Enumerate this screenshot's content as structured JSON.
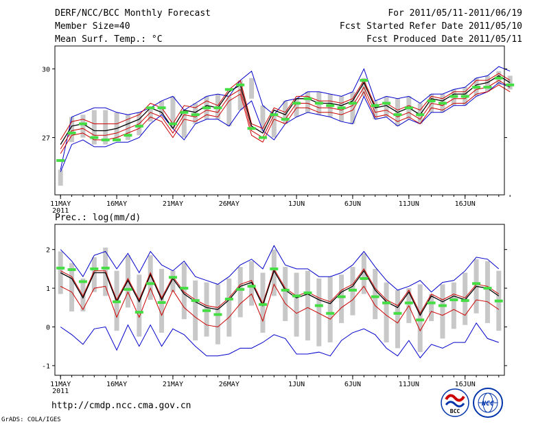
{
  "header": {
    "left": [
      "DERF/NCC/BCC Monthly Forecast",
      "Member Size=40",
      "Mean Surf. Temp.: °C"
    ],
    "right": [
      "For 2011/05/11-2011/06/19",
      "Fcst Started Refer Date 2011/05/10",
      "Fcst Produced Date 2011/05/11"
    ]
  },
  "footer": {
    "url": "http://cmdp.ncc.cma.gov.cn",
    "credit": "GrADS: COLA/IGES",
    "logo_bcc": "BCC",
    "logo_ncc": "NCC"
  },
  "colors": {
    "envelope": "#0000cc",
    "mean_lower": "#cc0000",
    "ensemble_mean": "#000000",
    "upper_band": "#cc0000",
    "box": "#c8c8c8",
    "median": "#44dd44"
  },
  "chart_data": [
    {
      "type": "line",
      "title": "Mean Surf. Temp.: °C",
      "xlabel": "",
      "ylabel": "°C",
      "xlim": [
        0.5,
        40.5
      ],
      "ylim": [
        24.5,
        31.0
      ],
      "yticks": [
        27,
        30
      ],
      "year_label": "2011",
      "xticks": [
        {
          "day": 1,
          "label": "11MAY"
        },
        {
          "day": 6,
          "label": "16MAY"
        },
        {
          "day": 11,
          "label": "21MAY"
        },
        {
          "day": 16,
          "label": "26MAY"
        },
        {
          "day": 22,
          "label": "1JUN"
        },
        {
          "day": 27,
          "label": "6JUN"
        },
        {
          "day": 32,
          "label": "11JUN"
        },
        {
          "day": 37,
          "label": "16JUN"
        }
      ],
      "series": [
        {
          "name": "max",
          "values": [
            25.6,
            27.9,
            28.1,
            28.3,
            28.3,
            28.1,
            28.0,
            28.1,
            28.3,
            28.6,
            28.8,
            28.2,
            28.5,
            28.8,
            28.9,
            28.8,
            29.5,
            29.9,
            28.4,
            28.0,
            28.6,
            28.7,
            29.0,
            29.0,
            28.9,
            28.8,
            29.0,
            30.0,
            28.6,
            28.8,
            28.7,
            28.8,
            28.5,
            28.9,
            28.9,
            29.1,
            29.2,
            29.6,
            29.7,
            30.1,
            29.9
          ]
        },
        {
          "name": "min",
          "values": [
            25.5,
            26.7,
            26.9,
            26.6,
            26.6,
            26.8,
            26.8,
            27.0,
            27.6,
            28.0,
            27.4,
            26.9,
            27.6,
            27.8,
            27.8,
            27.5,
            28.2,
            28.6,
            27.3,
            26.9,
            27.6,
            27.9,
            28.1,
            28.0,
            27.9,
            27.7,
            27.6,
            28.8,
            27.8,
            27.9,
            27.5,
            27.8,
            27.6,
            28.1,
            28.1,
            28.4,
            28.4,
            28.8,
            29.0,
            29.4,
            29.2
          ]
        },
        {
          "name": "upper",
          "values": [
            26.9,
            27.7,
            27.8,
            27.6,
            27.6,
            27.6,
            27.8,
            28.0,
            28.5,
            28.3,
            27.6,
            28.4,
            28.3,
            28.6,
            28.4,
            29.1,
            29.5,
            27.6,
            27.4,
            28.3,
            28.1,
            28.8,
            28.8,
            28.6,
            28.6,
            28.5,
            28.7,
            29.5,
            28.4,
            28.5,
            28.2,
            28.4,
            28.2,
            28.8,
            28.7,
            29.0,
            29.0,
            29.5,
            29.5,
            29.8,
            29.5
          ]
        },
        {
          "name": "mean",
          "values": [
            26.7,
            27.5,
            27.6,
            27.3,
            27.3,
            27.4,
            27.6,
            27.8,
            28.3,
            28.1,
            27.4,
            28.2,
            28.1,
            28.4,
            28.3,
            29.0,
            29.3,
            27.5,
            27.2,
            28.2,
            28.0,
            28.7,
            28.7,
            28.5,
            28.5,
            28.4,
            28.6,
            29.4,
            28.3,
            28.4,
            28.1,
            28.3,
            28.0,
            28.7,
            28.6,
            28.9,
            28.9,
            29.3,
            29.4,
            29.7,
            29.4
          ]
        },
        {
          "name": "lower",
          "values": [
            26.5,
            27.3,
            27.4,
            27.1,
            27.1,
            27.2,
            27.4,
            27.6,
            28.1,
            27.9,
            27.2,
            28.0,
            27.9,
            28.2,
            28.1,
            28.8,
            29.1,
            27.3,
            27.0,
            28.0,
            27.8,
            28.5,
            28.5,
            28.3,
            28.3,
            28.2,
            28.4,
            29.2,
            28.1,
            28.2,
            27.9,
            28.1,
            27.8,
            28.5,
            28.4,
            28.7,
            28.7,
            29.1,
            29.2,
            29.5,
            29.2
          ]
        },
        {
          "name": "bottom",
          "values": [
            26.3,
            27.1,
            27.2,
            26.9,
            26.9,
            27.0,
            27.2,
            27.4,
            27.9,
            27.7,
            27.0,
            27.8,
            27.7,
            28.0,
            27.9,
            28.6,
            28.9,
            27.1,
            26.8,
            27.8,
            27.6,
            28.3,
            28.3,
            28.1,
            28.1,
            28.0,
            28.2,
            29.0,
            27.9,
            28.0,
            27.7,
            27.9,
            27.6,
            28.3,
            28.2,
            28.5,
            28.5,
            28.9,
            29.0,
            29.3,
            29.0
          ]
        },
        {
          "name": "box_high",
          "values": [
            25.6,
            27.9,
            28.0,
            28.2,
            28.2,
            28.1,
            28.0,
            28.1,
            28.3,
            28.6,
            28.8,
            28.2,
            28.5,
            28.8,
            28.9,
            28.8,
            29.5,
            29.6,
            28.4,
            28.0,
            28.6,
            28.7,
            29.0,
            29.0,
            28.9,
            28.8,
            29.0,
            29.6,
            28.6,
            28.8,
            28.7,
            28.8,
            28.5,
            28.9,
            28.9,
            29.1,
            29.2,
            29.6,
            29.7,
            29.9,
            29.7
          ]
        },
        {
          "name": "box_low",
          "values": [
            24.9,
            26.8,
            27.0,
            26.7,
            26.7,
            26.9,
            26.9,
            27.1,
            27.7,
            28.0,
            27.4,
            27.0,
            27.6,
            27.8,
            27.8,
            27.5,
            28.2,
            28.7,
            27.3,
            27.0,
            27.6,
            27.9,
            28.1,
            28.0,
            27.9,
            27.7,
            27.6,
            28.8,
            27.8,
            27.9,
            27.5,
            27.8,
            27.6,
            28.1,
            28.1,
            28.4,
            28.4,
            28.8,
            29.0,
            29.3,
            29.1
          ]
        },
        {
          "name": "median",
          "values": [
            26.0,
            27.2,
            27.6,
            27.0,
            26.9,
            26.9,
            27.1,
            27.5,
            28.3,
            28.3,
            27.6,
            28.1,
            28.0,
            28.3,
            28.3,
            29.1,
            29.3,
            27.4,
            27.0,
            28.0,
            27.8,
            28.5,
            28.7,
            28.5,
            28.4,
            28.3,
            28.5,
            29.5,
            28.4,
            28.5,
            28.0,
            28.3,
            28.0,
            28.6,
            28.5,
            28.8,
            28.8,
            29.2,
            29.2,
            29.6,
            29.3
          ]
        }
      ]
    },
    {
      "type": "line",
      "title": "Prec.: log(mm/d)",
      "xlabel": "",
      "ylabel": "log(mm/d)",
      "xlim": [
        0.5,
        40.5
      ],
      "ylim": [
        -1.25,
        2.65
      ],
      "yticks": [
        -1,
        0,
        1,
        2
      ],
      "year_label": "2011",
      "xticks": [
        {
          "day": 1,
          "label": "11MAY"
        },
        {
          "day": 6,
          "label": "16MAY"
        },
        {
          "day": 11,
          "label": "21MAY"
        },
        {
          "day": 16,
          "label": "26MAY"
        },
        {
          "day": 22,
          "label": "1JUN"
        },
        {
          "day": 27,
          "label": "6JUN"
        },
        {
          "day": 32,
          "label": "11JUN"
        },
        {
          "day": 37,
          "label": "16JUN"
        }
      ],
      "series": [
        {
          "name": "max",
          "values": [
            2.0,
            1.7,
            1.3,
            1.85,
            1.95,
            1.5,
            1.9,
            1.4,
            1.95,
            1.6,
            1.45,
            1.7,
            1.3,
            1.2,
            1.1,
            1.3,
            1.6,
            1.75,
            1.5,
            2.1,
            1.6,
            1.5,
            1.5,
            1.3,
            1.3,
            1.4,
            1.6,
            1.95,
            1.55,
            1.2,
            0.95,
            1.05,
            1.2,
            0.9,
            1.15,
            1.2,
            1.45,
            1.8,
            1.75,
            1.5
          ]
        },
        {
          "name": "min",
          "values": [
            0.0,
            -0.2,
            -0.45,
            -0.05,
            0.0,
            -0.6,
            0.05,
            -0.5,
            0.05,
            -0.5,
            -0.05,
            -0.2,
            -0.5,
            -0.75,
            -0.75,
            -0.7,
            -0.55,
            -0.55,
            -0.4,
            -0.2,
            -0.3,
            -0.7,
            -0.7,
            -0.65,
            -0.75,
            -0.35,
            -0.15,
            -0.05,
            -0.2,
            -0.55,
            -0.75,
            -0.35,
            -0.8,
            -0.45,
            -0.55,
            -0.4,
            -0.4,
            0.1,
            -0.3,
            -0.4
          ]
        },
        {
          "name": "upper",
          "values": [
            1.45,
            1.3,
            0.8,
            1.45,
            1.45,
            0.7,
            1.25,
            0.7,
            1.4,
            0.75,
            1.3,
            0.9,
            0.7,
            0.55,
            0.5,
            0.75,
            1.1,
            1.2,
            0.6,
            1.5,
            1.0,
            0.8,
            0.9,
            0.75,
            0.65,
            0.95,
            1.1,
            1.5,
            1.0,
            0.7,
            0.55,
            0.95,
            0.35,
            0.85,
            0.7,
            0.85,
            0.75,
            1.1,
            1.05,
            0.85
          ]
        },
        {
          "name": "mean",
          "values": [
            1.4,
            1.25,
            0.75,
            1.4,
            1.4,
            0.65,
            1.2,
            0.65,
            1.35,
            0.7,
            1.25,
            0.85,
            0.65,
            0.5,
            0.45,
            0.7,
            1.05,
            1.15,
            0.55,
            1.45,
            0.95,
            0.75,
            0.85,
            0.7,
            0.6,
            0.9,
            1.05,
            1.45,
            0.95,
            0.65,
            0.5,
            0.9,
            0.3,
            0.8,
            0.65,
            0.8,
            0.7,
            1.05,
            1.0,
            0.8
          ]
        },
        {
          "name": "lower",
          "values": [
            1.05,
            0.9,
            0.45,
            1.0,
            1.05,
            0.25,
            0.9,
            0.25,
            1.0,
            0.3,
            0.95,
            0.5,
            0.25,
            0.05,
            0.0,
            0.25,
            0.6,
            0.85,
            0.15,
            1.1,
            0.6,
            0.35,
            0.5,
            0.35,
            0.2,
            0.5,
            0.7,
            1.05,
            0.55,
            0.3,
            0.1,
            0.55,
            -0.1,
            0.4,
            0.3,
            0.45,
            0.3,
            0.7,
            0.65,
            0.45
          ]
        },
        {
          "name": "box_high",
          "values": [
            1.95,
            1.65,
            1.25,
            1.8,
            2.05,
            1.45,
            1.85,
            1.35,
            1.85,
            1.5,
            1.45,
            1.65,
            1.2,
            1.15,
            1.1,
            1.25,
            1.55,
            1.7,
            1.4,
            2.0,
            1.55,
            1.4,
            1.45,
            1.25,
            1.3,
            1.35,
            1.55,
            1.9,
            1.5,
            1.15,
            0.95,
            1.0,
            1.1,
            0.85,
            1.1,
            1.15,
            1.4,
            1.75,
            1.7,
            1.45
          ]
        },
        {
          "name": "box_low",
          "values": [
            0.85,
            0.4,
            0.4,
            0.9,
            0.8,
            -0.1,
            0.5,
            -0.25,
            0.7,
            -0.15,
            0.9,
            0.2,
            -0.35,
            -0.25,
            -0.45,
            -0.25,
            0.25,
            0.55,
            -0.15,
            0.8,
            0.15,
            -0.25,
            -0.35,
            -0.5,
            -0.4,
            0.1,
            0.3,
            0.85,
            0.2,
            -0.4,
            -0.55,
            0.1,
            -0.65,
            0.15,
            -0.3,
            -0.05,
            0.05,
            0.35,
            0.1,
            -0.1
          ]
        },
        {
          "name": "median",
          "values": [
            1.52,
            1.48,
            1.17,
            1.5,
            1.52,
            0.65,
            0.97,
            0.38,
            1.12,
            0.63,
            1.28,
            1.0,
            0.68,
            0.42,
            0.32,
            0.72,
            0.97,
            1.05,
            0.58,
            1.5,
            0.95,
            0.8,
            0.88,
            0.55,
            0.35,
            0.78,
            0.95,
            1.25,
            0.78,
            0.62,
            0.35,
            0.62,
            0.18,
            0.62,
            0.55,
            0.7,
            0.68,
            1.12,
            1.0,
            0.67
          ]
        }
      ]
    }
  ]
}
